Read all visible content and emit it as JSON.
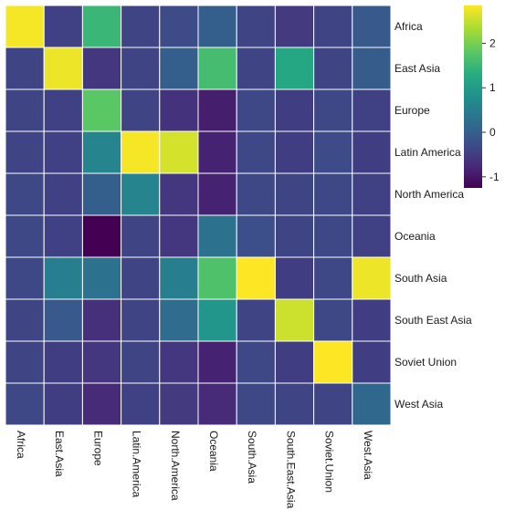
{
  "chart_data": {
    "type": "heatmap",
    "rows": [
      "Africa",
      "East Asia",
      "Europe",
      "Latin America",
      "North America",
      "Oceania",
      "South Asia",
      "South East Asia",
      "Soviet Union",
      "West Asia"
    ],
    "columns": [
      "Africa",
      "East.Asia",
      "Europe",
      "Latin.America",
      "North.America",
      "Oceania",
      "South.Asia",
      "South.East.Asia",
      "Soviet.Union",
      "West.Asia"
    ],
    "values": [
      [
        2.8,
        -0.45,
        1.5,
        -0.4,
        -0.3,
        0.0,
        -0.4,
        -0.55,
        -0.4,
        -0.1
      ],
      [
        -0.4,
        2.75,
        -0.6,
        -0.4,
        0.0,
        1.6,
        -0.4,
        1.2,
        -0.4,
        -0.05
      ],
      [
        -0.4,
        -0.45,
        1.8,
        -0.4,
        -0.65,
        -0.9,
        -0.35,
        -0.5,
        -0.35,
        -0.45
      ],
      [
        -0.4,
        -0.45,
        0.6,
        2.8,
        2.6,
        -0.85,
        -0.35,
        -0.5,
        -0.3,
        -0.5
      ],
      [
        -0.35,
        -0.45,
        0.0,
        0.6,
        -0.6,
        -0.85,
        -0.35,
        -0.4,
        -0.35,
        -0.45
      ],
      [
        -0.35,
        -0.45,
        -1.25,
        -0.4,
        -0.6,
        0.3,
        -0.25,
        -0.4,
        -0.35,
        -0.45
      ],
      [
        -0.35,
        0.5,
        0.3,
        -0.4,
        0.5,
        1.7,
        2.85,
        -0.5,
        -0.35,
        2.75
      ],
      [
        -0.4,
        -0.1,
        -0.7,
        -0.4,
        0.2,
        0.9,
        -0.4,
        2.55,
        -0.35,
        -0.5
      ],
      [
        -0.4,
        -0.5,
        -0.6,
        -0.4,
        -0.6,
        -0.85,
        -0.35,
        -0.5,
        2.85,
        -0.5
      ],
      [
        -0.35,
        -0.5,
        -0.75,
        -0.45,
        -0.55,
        -0.75,
        -0.35,
        -0.4,
        -0.4,
        0.15
      ]
    ],
    "vmin": -1.25,
    "vmax": 2.85,
    "colorbar": {
      "ticks": [
        2,
        1,
        0,
        -1
      ],
      "labels": [
        "2",
        "1",
        "0",
        "-1"
      ],
      "colormap": "viridis"
    },
    "grid_color": "#ffffff"
  }
}
